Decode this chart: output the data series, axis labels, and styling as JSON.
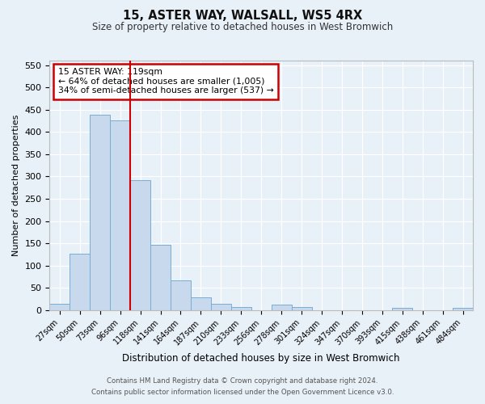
{
  "title1": "15, ASTER WAY, WALSALL, WS5 4RX",
  "title2": "Size of property relative to detached houses in West Bromwich",
  "xlabel": "Distribution of detached houses by size in West Bromwich",
  "ylabel": "Number of detached properties",
  "categories": [
    "27sqm",
    "50sqm",
    "73sqm",
    "96sqm",
    "118sqm",
    "141sqm",
    "164sqm",
    "187sqm",
    "210sqm",
    "233sqm",
    "256sqm",
    "278sqm",
    "301sqm",
    "324sqm",
    "347sqm",
    "370sqm",
    "393sqm",
    "415sqm",
    "438sqm",
    "461sqm",
    "484sqm"
  ],
  "values": [
    14,
    127,
    438,
    425,
    291,
    147,
    68,
    29,
    14,
    8,
    0,
    12,
    8,
    0,
    0,
    0,
    0,
    5,
    0,
    0,
    5
  ],
  "bar_color": "#c8d9ee",
  "bar_edge_color": "#7aadd4",
  "vline_color": "#cc0000",
  "annotation_text": "15 ASTER WAY: 119sqm\n← 64% of detached houses are smaller (1,005)\n34% of semi-detached houses are larger (537) →",
  "annotation_box_color": "#ffffff",
  "annotation_box_edge_color": "#cc0000",
  "bg_color": "#e8f0f8",
  "grid_color": "#ffffff",
  "ylim": [
    0,
    560
  ],
  "yticks": [
    0,
    50,
    100,
    150,
    200,
    250,
    300,
    350,
    400,
    450,
    500,
    550
  ],
  "footer1": "Contains HM Land Registry data © Crown copyright and database right 2024.",
  "footer2": "Contains public sector information licensed under the Open Government Licence v3.0."
}
